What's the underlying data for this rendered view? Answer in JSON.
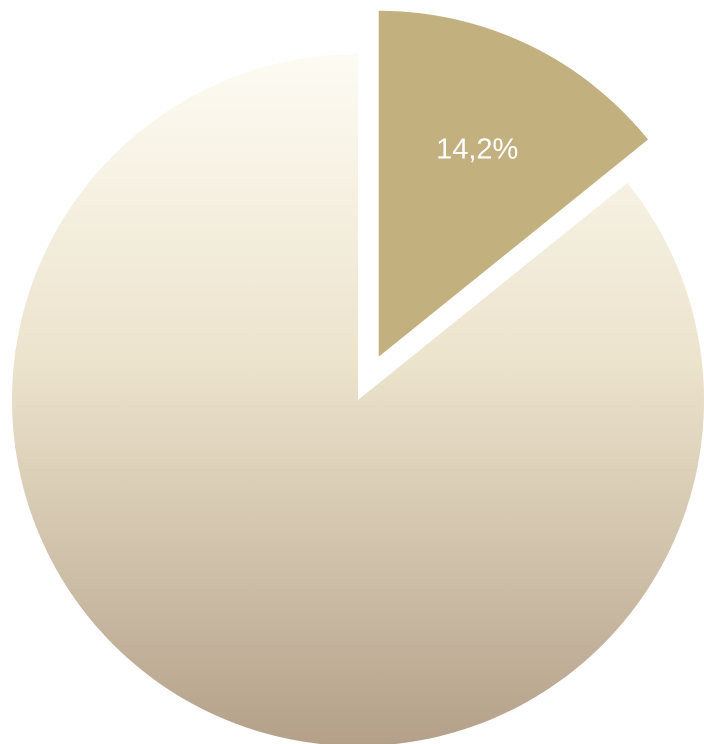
{
  "chart_data": {
    "type": "pie",
    "title": "",
    "slices": [
      {
        "value": 14.2,
        "label": "14,2%",
        "color": "#c2b07f",
        "exploded": true
      },
      {
        "value": 85.8,
        "label": "",
        "color_top": "#fdfbf3",
        "color_bottom": "#b4a089",
        "exploded": false
      }
    ],
    "start_angle_deg": 0,
    "direction": "clockwise",
    "legend": "none"
  }
}
